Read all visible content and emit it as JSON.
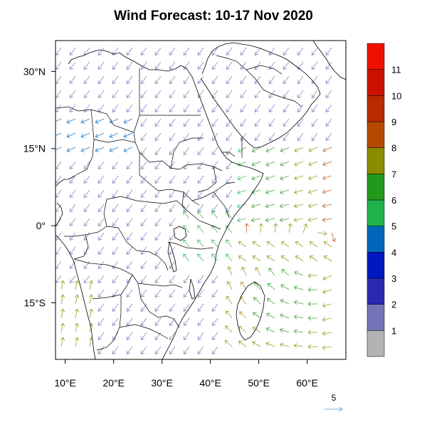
{
  "title": "Wind Forecast: 10-17 Nov 2020",
  "map": {
    "lon_range": [
      8,
      68
    ],
    "lat_range": [
      -26,
      36
    ],
    "x_ticks": [
      {
        "value": 10,
        "label": "10°E"
      },
      {
        "value": 20,
        "label": "20°E"
      },
      {
        "value": 30,
        "label": "30°E"
      },
      {
        "value": 40,
        "label": "40°E"
      },
      {
        "value": 50,
        "label": "50°E"
      },
      {
        "value": 60,
        "label": "60°E"
      }
    ],
    "y_ticks": [
      {
        "value": 30,
        "label": "30°N"
      },
      {
        "value": 15,
        "label": "15°N"
      },
      {
        "value": 0,
        "label": "0°"
      },
      {
        "value": -15,
        "label": "15°S"
      }
    ]
  },
  "colorbar": {
    "colors": [
      "#b3b3b3",
      "#7474b8",
      "#2a2ab0",
      "#0018c0",
      "#0066bb",
      "#22b24c",
      "#22991a",
      "#8c8c00",
      "#b44a00",
      "#b82a00",
      "#cc1100",
      "#ee1100"
    ],
    "labels": [
      "1",
      "2",
      "3",
      "4",
      "5",
      "6",
      "7",
      "8",
      "9",
      "10",
      "11"
    ]
  },
  "reference_vector": {
    "label": "5",
    "color": "#7ba8e0"
  }
}
